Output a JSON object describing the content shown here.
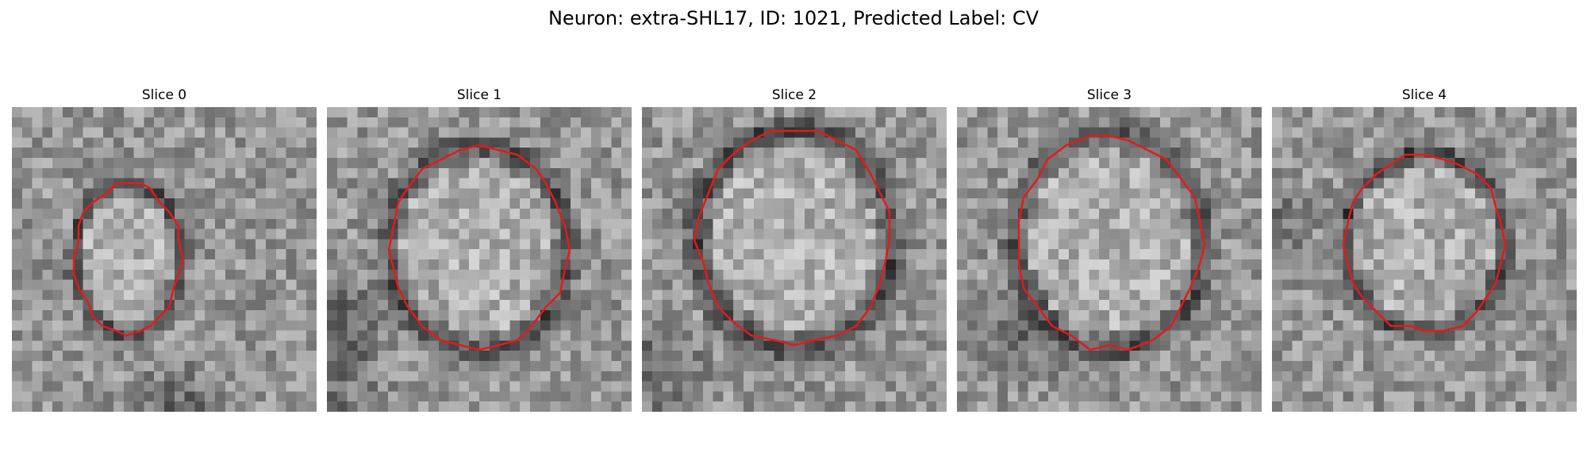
{
  "figure": {
    "title": "Neuron: extra-SHL17, ID: 1021, Predicted Label: CV",
    "contour_color": "#e31a1c"
  },
  "panels": [
    {
      "title": "Slice 0"
    },
    {
      "title": "Slice 1"
    },
    {
      "title": "Slice 2"
    },
    {
      "title": "Slice 3"
    },
    {
      "title": "Slice 4"
    }
  ]
}
